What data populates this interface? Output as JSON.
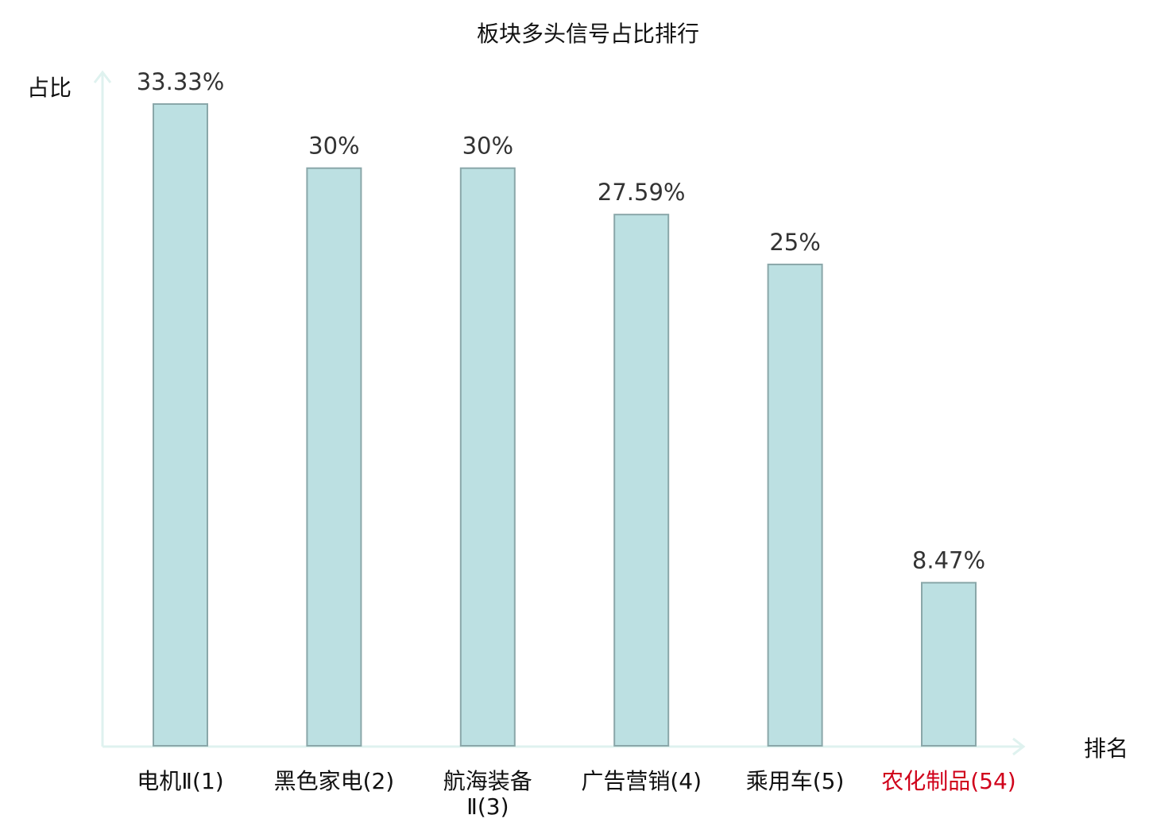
{
  "chart_data": {
    "type": "bar",
    "title": "板块多头信号占比排行",
    "ylabel": "占比",
    "xlabel": "排名",
    "categories": [
      [
        "电机Ⅱ(1)"
      ],
      [
        "黑色家电(2)"
      ],
      [
        "航海装备",
        "Ⅱ(3)"
      ],
      [
        "广告营销(4)"
      ],
      [
        "乘用车(5)"
      ],
      [
        "农化制品(54)"
      ]
    ],
    "values": [
      33.33,
      30,
      30,
      27.59,
      25,
      8.47
    ],
    "value_labels": [
      "33.33%",
      "30%",
      "30%",
      "27.59%",
      "25%",
      "8.47%"
    ],
    "highlight_index": 5,
    "ylim": [
      0,
      33.33
    ],
    "grid": false,
    "legend": "none"
  },
  "colors": {
    "bar_fill": "#bce0e2",
    "bar_stroke": "#8aa7a9",
    "axis": "#dff2ef",
    "text": "#333333",
    "label_text": "#111111",
    "highlight": "#d0021b"
  }
}
